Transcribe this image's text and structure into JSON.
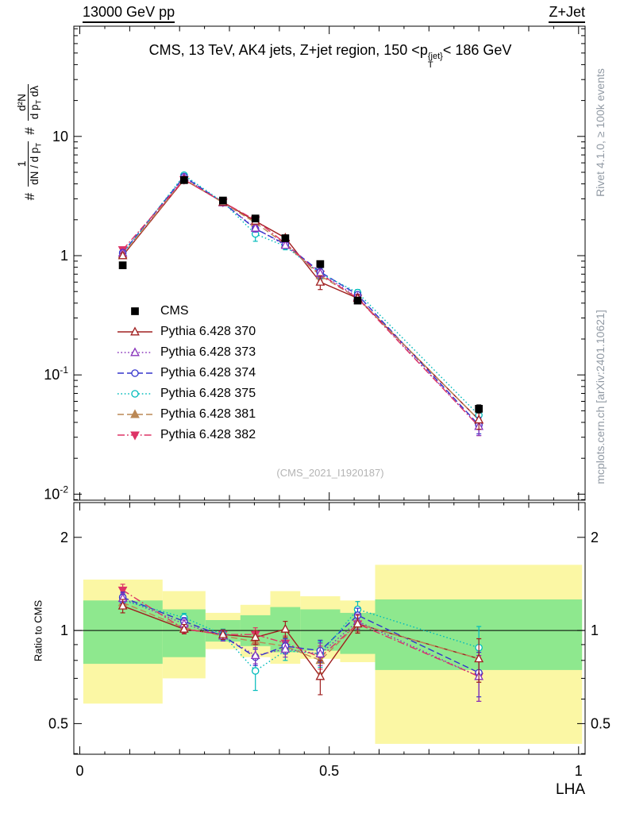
{
  "header": {
    "left": "13000 GeV pp",
    "right": "Z+Jet"
  },
  "title": {
    "part1": "CMS, 13 TeV, AK4 jets, Z+jet region, 150 <p",
    "sup": "{jet}",
    "sub": "T",
    "part2": "< 186 GeV"
  },
  "ylabel_main": {
    "hash1": "#",
    "frac1_num": "1",
    "frac1_den": "dN / d p",
    "frac1_den_sub": "T",
    "hash2": "#",
    "frac2_num": "d²N",
    "frac2_den_a": "d p",
    "frac2_den_sub": "T",
    "frac2_den_b": " dλ"
  },
  "ratio_ylabel": "Ratio to CMS",
  "xlabel": "LHA",
  "watermark": "(CMS_2021_I1920187)",
  "side_notes": {
    "top_right": "Rivet 4.1.0, ≥ 100k events",
    "bottom_right": "mcplots.cern.ch [arXiv:2401.10621]"
  },
  "colors": {
    "axis": "#000000",
    "band_yellow": "#fbf7a4",
    "band_green": "#8ee88e"
  },
  "chart_data": [
    {
      "type": "line",
      "panel": "main",
      "yscale": "log",
      "xlim": [
        -0.012,
        1.013
      ],
      "ylim": [
        0.0089,
        84
      ],
      "x": [
        0.086,
        0.209,
        0.287,
        0.352,
        0.412,
        0.482,
        0.557,
        0.8
      ],
      "ytick_labels": [
        {
          "v": 10,
          "base": "10"
        },
        {
          "v": 1,
          "base": "1"
        },
        {
          "v": 0.1,
          "base": "10",
          "exp": "-1"
        },
        {
          "v": 0.01,
          "base": "10",
          "exp": "-2"
        }
      ],
      "series": [
        {
          "name": "CMS",
          "color": "#000000",
          "marker": "square",
          "marker_filled": true,
          "line": "none",
          "values": [
            0.83,
            4.3,
            2.9,
            2.05,
            1.4,
            0.85,
            0.42,
            0.052
          ],
          "err": [
            0.04,
            0.1,
            0.08,
            0.06,
            0.05,
            0.04,
            0.02,
            0.004
          ]
        },
        {
          "name": "Pythia 6.428 370",
          "color": "#a02020",
          "marker": "triangle",
          "marker_filled": false,
          "line": "solid",
          "values": [
            1.0,
            4.34,
            2.81,
            1.95,
            1.41,
            0.6,
            0.44,
            0.042
          ],
          "err": [
            0.05,
            0.15,
            0.1,
            0.1,
            0.08,
            0.08,
            0.03,
            0.007
          ]
        },
        {
          "name": "Pythia 6.428 373",
          "color": "#8833bb",
          "marker": "triangle",
          "marker_filled": false,
          "line": "dot",
          "values": [
            1.05,
            4.52,
            2.78,
            1.7,
            1.22,
            0.71,
            0.45,
            0.037
          ],
          "err": [
            0.04,
            0.13,
            0.1,
            0.1,
            0.07,
            0.06,
            0.025,
            0.006
          ]
        },
        {
          "name": "Pythia 6.428 374",
          "color": "#3333cc",
          "marker": "circle",
          "marker_filled": false,
          "line": "dash",
          "values": [
            1.06,
            4.6,
            2.78,
            1.68,
            1.25,
            0.73,
            0.47,
            0.038
          ],
          "err": [
            0.04,
            0.13,
            0.1,
            0.1,
            0.07,
            0.06,
            0.025,
            0.006
          ]
        },
        {
          "name": "Pythia 6.428 375",
          "color": "#00bbbb",
          "marker": "circle",
          "marker_filled": false,
          "line": "dot",
          "values": [
            1.04,
            4.73,
            2.81,
            1.52,
            1.2,
            0.71,
            0.49,
            0.046
          ],
          "err": [
            0.05,
            0.15,
            0.11,
            0.2,
            0.08,
            0.07,
            0.03,
            0.008
          ]
        },
        {
          "name": "Pythia 6.428 381",
          "color": "#bb8855",
          "marker": "triangle",
          "marker_filled": true,
          "line": "dash",
          "values": [
            1.02,
            4.39,
            2.78,
            1.89,
            1.25,
            0.68,
            0.44,
            0.042
          ],
          "err": [
            0.04,
            0.13,
            0.1,
            0.1,
            0.07,
            0.06,
            0.025,
            0.007
          ]
        },
        {
          "name": "Pythia 6.428 382",
          "color": "#dd3366",
          "marker": "triangle-down",
          "marker_filled": true,
          "line": "dashdot",
          "values": [
            1.12,
            4.34,
            2.81,
            1.99,
            1.27,
            0.7,
            0.44,
            0.037
          ],
          "err": [
            0.05,
            0.13,
            0.1,
            0.1,
            0.07,
            0.06,
            0.025,
            0.006
          ]
        }
      ]
    },
    {
      "type": "line",
      "panel": "ratio",
      "yscale": "log",
      "xlim": [
        -0.012,
        1.013
      ],
      "ylim": [
        0.398,
        2.59
      ],
      "ref_line": 1,
      "x": [
        0.086,
        0.209,
        0.287,
        0.352,
        0.412,
        0.482,
        0.557,
        0.8
      ],
      "ytick_labels": [
        {
          "v": 2,
          "base": "2"
        },
        {
          "v": 1,
          "base": "1"
        },
        {
          "v": 0.5,
          "base": "0.5"
        }
      ],
      "xtick_labels": [
        {
          "v": 0,
          "label": "0"
        },
        {
          "v": 0.5,
          "label": "0.5"
        },
        {
          "v": 1,
          "label": "1"
        }
      ],
      "bands": [
        {
          "x0": 0.007,
          "x1": 0.166,
          "yellow": [
            0.58,
            1.46
          ],
          "green": [
            0.78,
            1.25
          ]
        },
        {
          "x0": 0.166,
          "x1": 0.252,
          "yellow": [
            0.7,
            1.34
          ],
          "green": [
            0.82,
            1.17
          ]
        },
        {
          "x0": 0.252,
          "x1": 0.322,
          "yellow": [
            0.87,
            1.14
          ],
          "green": [
            0.92,
            1.08
          ]
        },
        {
          "x0": 0.322,
          "x1": 0.382,
          "yellow": [
            0.82,
            1.21
          ],
          "green": [
            0.89,
            1.12
          ]
        },
        {
          "x0": 0.382,
          "x1": 0.442,
          "yellow": [
            0.78,
            1.34
          ],
          "green": [
            0.85,
            1.19
          ]
        },
        {
          "x0": 0.442,
          "x1": 0.522,
          "yellow": [
            0.81,
            1.29
          ],
          "green": [
            0.86,
            1.17
          ]
        },
        {
          "x0": 0.522,
          "x1": 0.592,
          "yellow": [
            0.79,
            1.25
          ],
          "green": [
            0.84,
            1.14
          ]
        },
        {
          "x0": 0.592,
          "x1": 1.007,
          "yellow": [
            0.43,
            1.63
          ],
          "green": [
            0.745,
            1.26
          ]
        }
      ],
      "series": [
        {
          "name": "Pythia 6.428 370",
          "color": "#a02020",
          "marker": "triangle",
          "marker_filled": false,
          "line": "solid",
          "values": [
            1.2,
            1.01,
            0.97,
            0.95,
            1.01,
            0.71,
            1.05,
            0.81
          ],
          "err": [
            0.06,
            0.035,
            0.035,
            0.05,
            0.06,
            0.09,
            0.07,
            0.13
          ]
        },
        {
          "name": "Pythia 6.428 373",
          "color": "#8833bb",
          "marker": "triangle",
          "marker_filled": false,
          "line": "dot",
          "values": [
            1.27,
            1.05,
            0.96,
            0.83,
            0.87,
            0.84,
            1.07,
            0.71
          ],
          "err": [
            0.05,
            0.03,
            0.035,
            0.05,
            0.05,
            0.07,
            0.06,
            0.12
          ]
        },
        {
          "name": "Pythia 6.428 374",
          "color": "#3333cc",
          "marker": "circle",
          "marker_filled": false,
          "line": "dash",
          "values": [
            1.28,
            1.07,
            0.96,
            0.82,
            0.89,
            0.86,
            1.12,
            0.73
          ],
          "err": [
            0.05,
            0.03,
            0.035,
            0.05,
            0.05,
            0.07,
            0.06,
            0.12
          ]
        },
        {
          "name": "Pythia 6.428 375",
          "color": "#00bbbb",
          "marker": "circle",
          "marker_filled": false,
          "line": "dot",
          "values": [
            1.25,
            1.1,
            0.97,
            0.74,
            0.86,
            0.84,
            1.17,
            0.88
          ],
          "err": [
            0.06,
            0.035,
            0.04,
            0.1,
            0.06,
            0.08,
            0.07,
            0.15
          ]
        },
        {
          "name": "Pythia 6.428 381",
          "color": "#bb8855",
          "marker": "triangle",
          "marker_filled": true,
          "line": "dash",
          "values": [
            1.23,
            1.02,
            0.96,
            0.92,
            0.89,
            0.8,
            1.05,
            0.81
          ],
          "err": [
            0.05,
            0.03,
            0.035,
            0.05,
            0.05,
            0.07,
            0.06,
            0.13
          ]
        },
        {
          "name": "Pythia 6.428 382",
          "color": "#dd3366",
          "marker": "triangle-down",
          "marker_filled": true,
          "line": "dashdot",
          "values": [
            1.35,
            1.01,
            0.97,
            0.97,
            0.91,
            0.82,
            1.05,
            0.71
          ],
          "err": [
            0.06,
            0.03,
            0.035,
            0.05,
            0.05,
            0.07,
            0.06,
            0.12
          ]
        }
      ]
    }
  ]
}
